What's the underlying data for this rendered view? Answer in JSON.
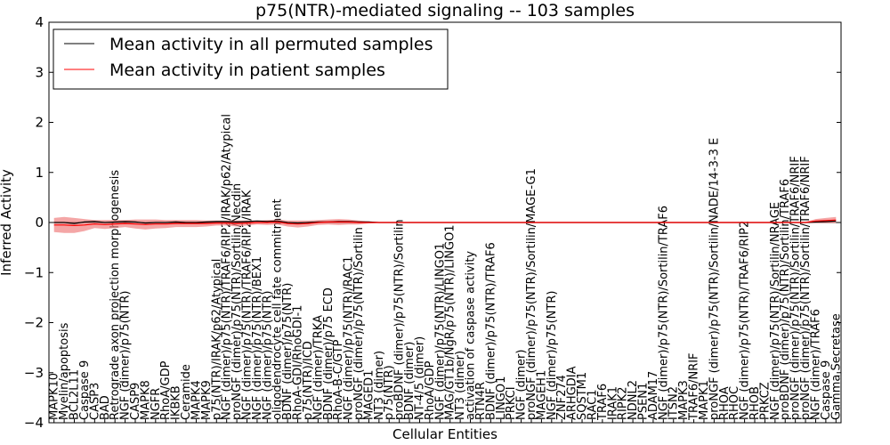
{
  "chart_data": {
    "type": "line",
    "title": "p75(NTR)-mediated signaling -- 103 samples",
    "xlabel": "Cellular Entities",
    "ylabel": "Inferred Activity",
    "ylim": [
      -4,
      4
    ],
    "yticks": [
      -4,
      -3,
      -2,
      -1,
      0,
      1,
      2,
      3,
      4
    ],
    "legend_position": "top-left",
    "categories": [
      "MAPK10",
      "Myelin/apoptosis",
      "BCL2L11",
      "Caspase 9",
      "CASP3",
      "BAD",
      "Retrograde axon projection morphogenesis",
      "NGF (dimer)/p75(NTR)",
      "CASP9",
      "MAPK8",
      "NGFR",
      "RhoA/GDP",
      "IKBKB",
      "Ceramide",
      "MAPK4",
      "MAPK9",
      "p75(NTR)/IRAK/p62/Atypical",
      "NGF (dimer)/p75(NTR)/TRAF6/RIP2/IRAK/p62/Atypical",
      "proNGF (dimer)/p75(NTR)/Sortilin/Necdin",
      "NGF (dimer)/p75(NTR)/TRAF6/RIP2/IRAK",
      "NGF (dimer)/p75(NTR)/BEX1",
      "NGF (dimer)/p75(NTR)",
      "oligodendrocyte cell fate commitment",
      "BDNF (dimer)/p75(NTR)",
      "RhoA-GDI/RhoGDI-1",
      "p75(NTR)/ICD",
      "NGF (dimer)/TRKA",
      "BDNF (dimer)/p75 ECD",
      "RhoA-B-C/GTP",
      "NGF (dimer)/p75(NTR)/RAC1",
      "proNGF (dimer)/p75(NTR)/Sortilin",
      "MAGED1",
      "NT3 (dimer)",
      "p75(NTR)",
      "proBDNF (dimer)/p75(NTR)/Sortilin",
      "BDNF (dimer)",
      "NT-4/5 (dimer)",
      "RhoA/GDP",
      "NGF (dimer)/p75(NTR)/LINGO1",
      "MAG/GT1b/NgR/p75(NTR)/LINGO1",
      "NT3 (dimer)",
      "activation of caspase activity",
      "RTN4R",
      "BDNF (dimer)/p75(NTR)/TRAF6",
      "LINGO1",
      "PRKCI",
      "NGF (dimer)",
      "proNGF (dimer)/p75(NTR)/Sortilin/MAGE-G1",
      "MAGEH1",
      "NGF (dimer)/p75(NTR)",
      "ZNF274",
      "ARHGDIA",
      "SQSTM1",
      "RAC1",
      "TRAF6",
      "IRAK1",
      "RIPK2",
      "NDNL2",
      "PSEN1",
      "ADAM17",
      "NGF (dimer)/p75(NTR)/Sortilin/TRAF6",
      "ITSN2",
      "MAPK3",
      "TRAF6/NRIF",
      "MAPK1",
      "proNGF (dimer)/p75(NTR)/Sortilin/NADE/14-3-3 E",
      "RHOA",
      "RHOC",
      "NGF (dimer)/p75(NTR)/TRAF6/RIP2",
      "RHOB",
      "PRKCZ",
      "NGF (dimer)/p75(NTR)/Sortilin/NRAGE",
      "proBDNF (dimer)/p75(NTR)/Sortilin/TRAF6",
      "proNGF (dimer)/p75(NTR)/Sortilin/TRAF6/NRIF",
      "proNGF (dimer)/p75(NTR)/Sortilin/TRAF6/NRIF",
      "NGF (dimer)/TRAF6",
      "Caspase 9",
      "Gamma Secretase"
    ],
    "series": [
      {
        "name": "Mean activity in all permuted samples",
        "color": "#000000",
        "values": [
          0.0,
          0.0,
          -0.02,
          0.01,
          0.02,
          0.0,
          0.01,
          0.02,
          0.01,
          -0.01,
          0.0,
          0.0,
          0.01,
          0.0,
          0.0,
          0.01,
          0.02,
          0.02,
          0.01,
          0.02,
          0.03,
          0.02,
          0.03,
          0.0,
          -0.01,
          0.0,
          0.01,
          0.01,
          0.02,
          0.02,
          0.01,
          0.01,
          0.0,
          0.0,
          0.0,
          0.0,
          0.0,
          0.0,
          0.0,
          0.0,
          0.0,
          0.0,
          0.0,
          0.0,
          0.0,
          0.0,
          0.0,
          0.0,
          0.0,
          0.0,
          0.0,
          0.0,
          0.0,
          0.0,
          0.0,
          0.0,
          0.0,
          0.0,
          0.0,
          0.0,
          0.0,
          0.0,
          0.0,
          0.0,
          0.0,
          0.0,
          0.0,
          0.0,
          0.0,
          0.0,
          0.0,
          0.0,
          0.0,
          0.0,
          0.0,
          0.01,
          0.02,
          0.03
        ]
      },
      {
        "name": "Mean activity in patient samples",
        "color": "#ff0000",
        "values": [
          -0.05,
          -0.05,
          -0.06,
          -0.05,
          -0.03,
          -0.04,
          -0.03,
          -0.02,
          -0.03,
          -0.04,
          -0.03,
          -0.03,
          -0.02,
          -0.02,
          -0.02,
          -0.02,
          -0.01,
          -0.01,
          -0.02,
          -0.01,
          0.0,
          0.0,
          0.01,
          -0.02,
          -0.03,
          -0.02,
          0.0,
          0.01,
          0.01,
          0.01,
          0.0,
          0.0,
          0.0,
          0.0,
          0.0,
          0.0,
          0.0,
          0.0,
          0.0,
          0.0,
          0.0,
          0.0,
          0.0,
          0.0,
          0.0,
          0.0,
          0.0,
          0.0,
          0.0,
          0.0,
          0.0,
          0.0,
          0.0,
          0.0,
          0.0,
          0.0,
          0.0,
          0.0,
          0.0,
          0.0,
          0.0,
          0.0,
          0.0,
          0.0,
          0.0,
          0.0,
          0.0,
          0.0,
          0.0,
          0.0,
          0.0,
          0.0,
          0.0,
          0.0,
          0.0,
          0.03,
          0.04,
          0.05
        ],
        "band": [
          0.14,
          0.16,
          0.15,
          0.12,
          0.08,
          0.09,
          0.08,
          0.07,
          0.09,
          0.1,
          0.09,
          0.08,
          0.07,
          0.07,
          0.07,
          0.06,
          0.05,
          0.05,
          0.06,
          0.05,
          0.04,
          0.05,
          0.05,
          0.06,
          0.07,
          0.06,
          0.05,
          0.05,
          0.06,
          0.05,
          0.04,
          0.02,
          0.01,
          0.01,
          0.01,
          0.01,
          0.01,
          0.01,
          0.01,
          0.01,
          0.01,
          0.01,
          0.01,
          0.01,
          0.01,
          0.01,
          0.01,
          0.01,
          0.01,
          0.01,
          0.01,
          0.01,
          0.01,
          0.01,
          0.01,
          0.01,
          0.01,
          0.01,
          0.01,
          0.01,
          0.01,
          0.01,
          0.01,
          0.01,
          0.01,
          0.01,
          0.01,
          0.01,
          0.01,
          0.01,
          0.01,
          0.01,
          0.01,
          0.01,
          0.01,
          0.04,
          0.05,
          0.06
        ]
      }
    ]
  }
}
